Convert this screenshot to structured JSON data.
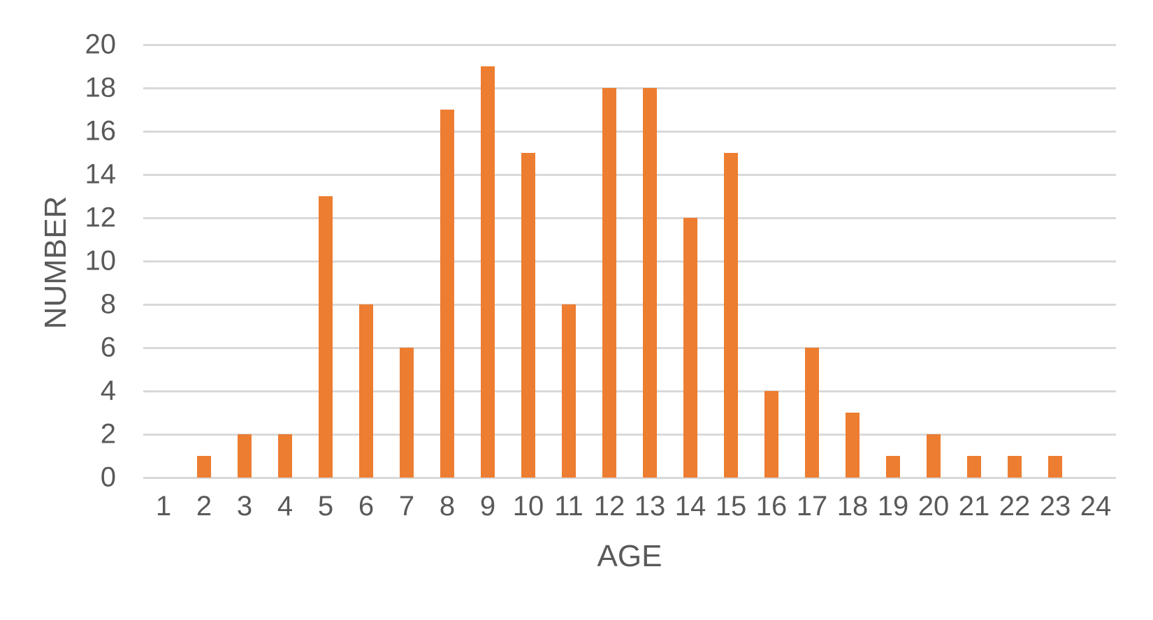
{
  "chart_data": {
    "type": "bar",
    "categories": [
      "1",
      "2",
      "3",
      "4",
      "5",
      "6",
      "7",
      "8",
      "9",
      "10",
      "11",
      "12",
      "13",
      "14",
      "15",
      "16",
      "17",
      "18",
      "19",
      "20",
      "21",
      "22",
      "23",
      "24"
    ],
    "values": [
      0,
      1,
      2,
      2,
      13,
      8,
      6,
      17,
      19,
      15,
      8,
      18,
      18,
      12,
      15,
      4,
      6,
      3,
      1,
      2,
      1,
      1,
      1,
      0
    ],
    "title": "",
    "xlabel": "AGE",
    "ylabel": "NUMBER",
    "ylim": [
      0,
      20
    ],
    "ytick_step": 2,
    "yticks": [
      0,
      2,
      4,
      6,
      8,
      10,
      12,
      14,
      16,
      18,
      20
    ],
    "grid": true,
    "legend_position": "none",
    "colors": {
      "bar": "#ED7D31",
      "gridline": "#D9D9D9",
      "axis_text": "#595959",
      "background": "#FFFFFF"
    }
  }
}
